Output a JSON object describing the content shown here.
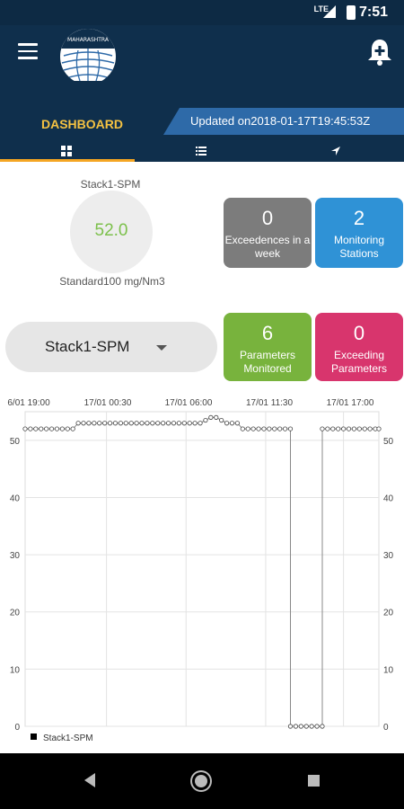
{
  "status_bar": {
    "time": "7:51",
    "network": "LTE"
  },
  "app_bar": {
    "logo_text": "MAHARASHTRA"
  },
  "header": {
    "dashboard_label": "DASHBOARD",
    "updated": "Updated on2018-01-17T19:45:53Z"
  },
  "tabs": [
    {
      "icon": "grid-icon",
      "active": true
    },
    {
      "icon": "list-icon",
      "active": false
    },
    {
      "icon": "navigation-icon",
      "active": false
    }
  ],
  "gauge": {
    "label": "Stack1-SPM",
    "value": "52.0",
    "standard": "Standard100 mg/Nm3",
    "value_color": "#7cc04b"
  },
  "cards": {
    "exceedences": {
      "value": "0",
      "label": "Exceedences in a week",
      "color": "#7c7c7c"
    },
    "stations": {
      "value": "2",
      "label": "Monitoring Stations",
      "color": "#2f92d6"
    },
    "parameters": {
      "value": "6",
      "label": "Parameters Monitored",
      "color": "#78b33d"
    },
    "exceeding": {
      "value": "0",
      "label": "Exceeding Parameters",
      "color": "#d8356d"
    }
  },
  "dropdown": {
    "selected": "Stack1-SPM"
  },
  "chart_data": {
    "type": "line",
    "x_tick_labels": [
      "6/01 19:00",
      "17/01 00:30",
      "17/01 06:00",
      "17/01 11:30",
      "17/01 17:00"
    ],
    "y_ticks": [
      0,
      10,
      20,
      30,
      40,
      50
    ],
    "ylim": [
      0,
      55
    ],
    "grid": true,
    "legend": "bottom-left",
    "series": [
      {
        "name": "Stack1-SPM",
        "x_range": [
          0,
          30
        ],
        "values": [
          [
            0.0,
            52
          ],
          [
            0.45,
            52
          ],
          [
            0.9,
            52
          ],
          [
            1.35,
            52
          ],
          [
            1.8,
            52
          ],
          [
            2.25,
            52
          ],
          [
            2.7,
            52
          ],
          [
            3.15,
            52
          ],
          [
            3.6,
            52
          ],
          [
            4.05,
            52
          ],
          [
            4.5,
            53
          ],
          [
            4.95,
            53
          ],
          [
            5.4,
            53
          ],
          [
            5.85,
            53
          ],
          [
            6.3,
            53
          ],
          [
            6.75,
            53
          ],
          [
            7.2,
            53
          ],
          [
            7.65,
            53
          ],
          [
            8.1,
            53
          ],
          [
            8.55,
            53
          ],
          [
            9.0,
            53
          ],
          [
            9.45,
            53
          ],
          [
            9.9,
            53
          ],
          [
            10.35,
            53
          ],
          [
            10.8,
            53
          ],
          [
            11.25,
            53
          ],
          [
            11.7,
            53
          ],
          [
            12.15,
            53
          ],
          [
            12.6,
            53
          ],
          [
            13.05,
            53
          ],
          [
            13.5,
            53
          ],
          [
            13.95,
            53
          ],
          [
            14.4,
            53
          ],
          [
            14.85,
            53
          ],
          [
            15.3,
            53.5
          ],
          [
            15.75,
            54
          ],
          [
            16.2,
            54
          ],
          [
            16.65,
            53.5
          ],
          [
            17.1,
            53
          ],
          [
            17.55,
            53
          ],
          [
            18.0,
            53
          ],
          [
            18.45,
            52
          ],
          [
            18.9,
            52
          ],
          [
            19.35,
            52
          ],
          [
            19.8,
            52
          ],
          [
            20.25,
            52
          ],
          [
            20.7,
            52
          ],
          [
            21.15,
            52
          ],
          [
            21.6,
            52
          ],
          [
            22.05,
            52
          ],
          [
            22.5,
            52
          ],
          [
            22.5,
            0
          ],
          [
            22.95,
            0
          ],
          [
            23.4,
            0
          ],
          [
            23.85,
            0
          ],
          [
            24.3,
            0
          ],
          [
            24.75,
            0
          ],
          [
            25.2,
            0
          ],
          [
            25.2,
            52
          ],
          [
            25.65,
            52
          ],
          [
            26.1,
            52
          ],
          [
            26.55,
            52
          ],
          [
            27.0,
            52
          ],
          [
            27.45,
            52
          ],
          [
            27.9,
            52
          ],
          [
            28.35,
            52
          ],
          [
            28.8,
            52
          ],
          [
            29.25,
            52
          ],
          [
            29.7,
            52
          ],
          [
            30.0,
            52
          ]
        ]
      }
    ]
  }
}
